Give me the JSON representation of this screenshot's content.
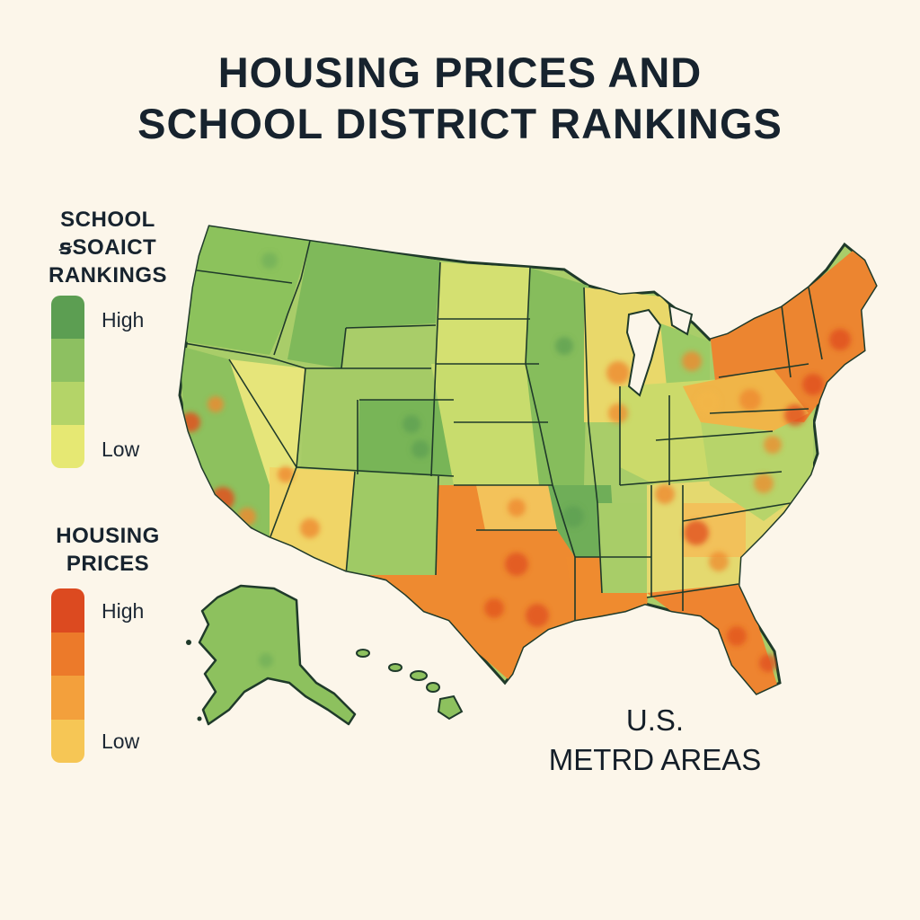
{
  "title": {
    "line1": "HOUSING PRICES AND",
    "line2": "SCHOOL DISTRICT RANKINGS"
  },
  "legend_school": {
    "heading_lines": [
      "SCHOOL",
      "ꞩSOAICT",
      "RANKINGS"
    ],
    "high_label": "High",
    "low_label": "Low",
    "colors": [
      "#5c9e52",
      "#8dc061",
      "#b4d468",
      "#e6e873"
    ]
  },
  "legend_housing": {
    "heading_lines": [
      "HOUSING",
      "PRICES"
    ],
    "high_label": "High",
    "low_label": "Low",
    "colors": [
      "#dc4a20",
      "#ec7a2a",
      "#f3a03c",
      "#f6c655"
    ]
  },
  "map_label": {
    "line1": "U.S.",
    "line2": "METRD AREAS"
  },
  "colors": {
    "background": "#fcf6ea",
    "state_border": "#1f3a2a",
    "school_high": "#6fae58",
    "school_mid": "#a8cd68",
    "school_low": "#e2e377",
    "housing_high": "#e0521e",
    "housing_mid": "#ee8a2e",
    "housing_low": "#f3b548"
  }
}
